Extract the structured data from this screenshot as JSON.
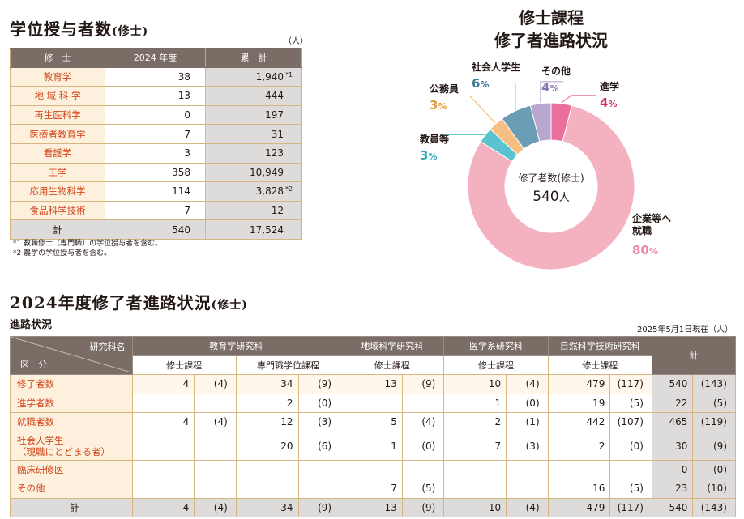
{
  "degrees": {
    "title": "学位授与者数",
    "title_suffix": "(修士)",
    "unit": "（人）",
    "columns": [
      "修　士",
      "2024 年度",
      "累　計"
    ],
    "rows": [
      {
        "label": "教育学",
        "year": "38",
        "cumulative": "1,940",
        "note": "*1"
      },
      {
        "label": "地 域 科 学",
        "year": "13",
        "cumulative": "444",
        "note": ""
      },
      {
        "label": "再生医科学",
        "year": "0",
        "cumulative": "197",
        "note": ""
      },
      {
        "label": "医療者教育学",
        "year": "7",
        "cumulative": "31",
        "note": ""
      },
      {
        "label": "看護学",
        "year": "3",
        "cumulative": "123",
        "note": ""
      },
      {
        "label": "工学",
        "year": "358",
        "cumulative": "10,949",
        "note": ""
      },
      {
        "label": "応用生物科学",
        "year": "114",
        "cumulative": "3,828",
        "note": "*2"
      },
      {
        "label": "食品科学技術",
        "year": "7",
        "cumulative": "12",
        "note": ""
      }
    ],
    "total": {
      "label": "計",
      "year": "540",
      "cumulative": "17,524"
    },
    "footnotes": [
      "*1 教職修士（専門職）の学位授与者を含む。",
      "*2 農学の学位授与者を含む。"
    ]
  },
  "chart_title": [
    "修士課程",
    "修了者進路状況"
  ],
  "chart_data": {
    "type": "pie",
    "donut": true,
    "center_label": "修了者数(修士)",
    "center_value": "540",
    "center_unit": "人",
    "slices": [
      {
        "label": "進学",
        "value": 4,
        "pct": "4",
        "color": "#e8709b",
        "text_color": "#d2316a"
      },
      {
        "label": "企業等へ就職",
        "label_lines": [
          "企業等へ",
          "就職"
        ],
        "value": 80,
        "pct": "80",
        "color": "#f4b1bf",
        "text_color": "#ec8aa4"
      },
      {
        "label": "教員等",
        "value": 3,
        "pct": "3",
        "color": "#5bc3cf",
        "text_color": "#2fa9b8"
      },
      {
        "label": "公務員",
        "value": 3,
        "pct": "3",
        "color": "#f6be83",
        "text_color": "#e89a3e"
      },
      {
        "label": "社会人学生",
        "value": 6,
        "pct": "6",
        "color": "#6b9eb4",
        "text_color": "#3f7a96"
      },
      {
        "label": "その他",
        "value": 4,
        "pct": "4",
        "color": "#b7a7cf",
        "text_color": "#8c78b4"
      }
    ],
    "pct_unit": "%"
  },
  "career": {
    "title": "2024年度修了者進路状況",
    "title_suffix": "(修士)",
    "subtitle": "進路状況",
    "as_of": "2025年5月1日現在（人）",
    "header_top_left": "研究科名",
    "header_bottom_left": "区　分",
    "schools": [
      {
        "name": "教育学研究科",
        "programs": [
          "修士課程",
          "専門職学位課程"
        ]
      },
      {
        "name": "地域科学研究科",
        "programs": [
          "修士課程"
        ]
      },
      {
        "name": "医学系研究科",
        "programs": [
          "修士課程"
        ]
      },
      {
        "name": "自然科学技術研究科",
        "programs": [
          "修士課程"
        ]
      }
    ],
    "total_header": "計",
    "rows": [
      {
        "label": "修了者数",
        "cells": [
          [
            "4",
            "(4)"
          ],
          [
            "34",
            "(9)"
          ],
          [
            "13",
            "(9)"
          ],
          [
            "10",
            "(4)"
          ],
          [
            "479",
            "(117)"
          ]
        ],
        "total": [
          "540",
          "(143)"
        ]
      },
      {
        "label": "進学者数",
        "cells": [
          [
            "",
            ""
          ],
          [
            "2",
            "(0)"
          ],
          [
            "",
            ""
          ],
          [
            "1",
            "(0)"
          ],
          [
            "19",
            "(5)"
          ]
        ],
        "total": [
          "22",
          "(5)"
        ]
      },
      {
        "label": "就職者数",
        "cells": [
          [
            "4",
            "(4)"
          ],
          [
            "12",
            "(3)"
          ],
          [
            "5",
            "(4)"
          ],
          [
            "2",
            "(1)"
          ],
          [
            "442",
            "(107)"
          ]
        ],
        "total": [
          "465",
          "(119)"
        ]
      },
      {
        "label": "社会人学生",
        "label2": "（現職にとどまる者）",
        "cells": [
          [
            "",
            ""
          ],
          [
            "20",
            "(6)"
          ],
          [
            "1",
            "(0)"
          ],
          [
            "7",
            "(3)"
          ],
          [
            "2",
            "(0)"
          ]
        ],
        "total": [
          "30",
          "(9)"
        ]
      },
      {
        "label": "臨床研修医",
        "cells": [
          [
            "",
            ""
          ],
          [
            "",
            ""
          ],
          [
            "",
            ""
          ],
          [
            "",
            ""
          ],
          [
            "",
            ""
          ]
        ],
        "total": [
          "0",
          "(0)"
        ]
      },
      {
        "label": "その他",
        "cells": [
          [
            "",
            ""
          ],
          [
            "",
            ""
          ],
          [
            "7",
            "(5)"
          ],
          [
            "",
            ""
          ],
          [
            "16",
            "(5)"
          ]
        ],
        "total": [
          "23",
          "(10)"
        ]
      }
    ],
    "total_row": {
      "label": "計",
      "cells": [
        [
          "4",
          "(4)"
        ],
        [
          "34",
          "(9)"
        ],
        [
          "13",
          "(9)"
        ],
        [
          "10",
          "(4)"
        ],
        [
          "479",
          "(117)"
        ]
      ],
      "total": [
        "540",
        "(143)"
      ]
    }
  }
}
